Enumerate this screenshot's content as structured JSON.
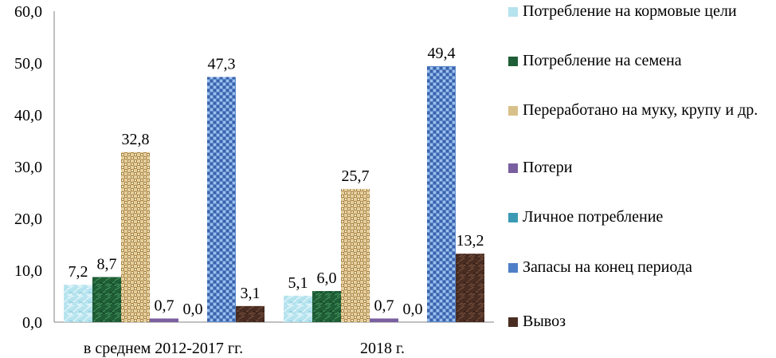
{
  "chart_data": {
    "type": "bar",
    "categories": [
      "в среднем 2012-2017 гг.",
      "2018 г."
    ],
    "ylim": [
      0,
      60
    ],
    "y_ticks": [
      "0,0",
      "10,0",
      "20,0",
      "30,0",
      "40,0",
      "50,0",
      "60,0"
    ],
    "grid": false,
    "legend_position": "right",
    "series": [
      {
        "name": "Потребление на  кормовые цели",
        "values": [
          7.2,
          5.1
        ],
        "labels": [
          "7,2",
          "5,1"
        ],
        "color": "#b5e3ee",
        "pattern": "marble-light"
      },
      {
        "name": "Потребление на семена",
        "values": [
          8.7,
          6.0
        ],
        "labels": [
          "8,7",
          "6,0"
        ],
        "color": "#1f5e36",
        "pattern": "marble-green"
      },
      {
        "name": "Переработано на муку, крупу и др.",
        "values": [
          32.8,
          25.7
        ],
        "labels": [
          "32,8",
          "25,7"
        ],
        "color": "#d8c08a",
        "pattern": "woven"
      },
      {
        "name": "Потери",
        "values": [
          0.7,
          0.7
        ],
        "labels": [
          "0,7",
          "0,7"
        ],
        "color": "#7a5fa0",
        "pattern": "solid"
      },
      {
        "name": "Личное потребление",
        "values": [
          0.0,
          0.0
        ],
        "labels": [
          "0,0",
          "0,0"
        ],
        "color": "#3a9ab3",
        "pattern": "solid"
      },
      {
        "name": "Запасы на конец периода",
        "values": [
          47.3,
          49.4
        ],
        "labels": [
          "47,3",
          "49,4"
        ],
        "color": "#4f7fc8",
        "pattern": "mosaic"
      },
      {
        "name": "Вывоз",
        "values": [
          3.1,
          13.2
        ],
        "labels": [
          "3,1",
          "13,2"
        ],
        "color": "#4a2d22",
        "pattern": "marble-brown"
      }
    ]
  }
}
